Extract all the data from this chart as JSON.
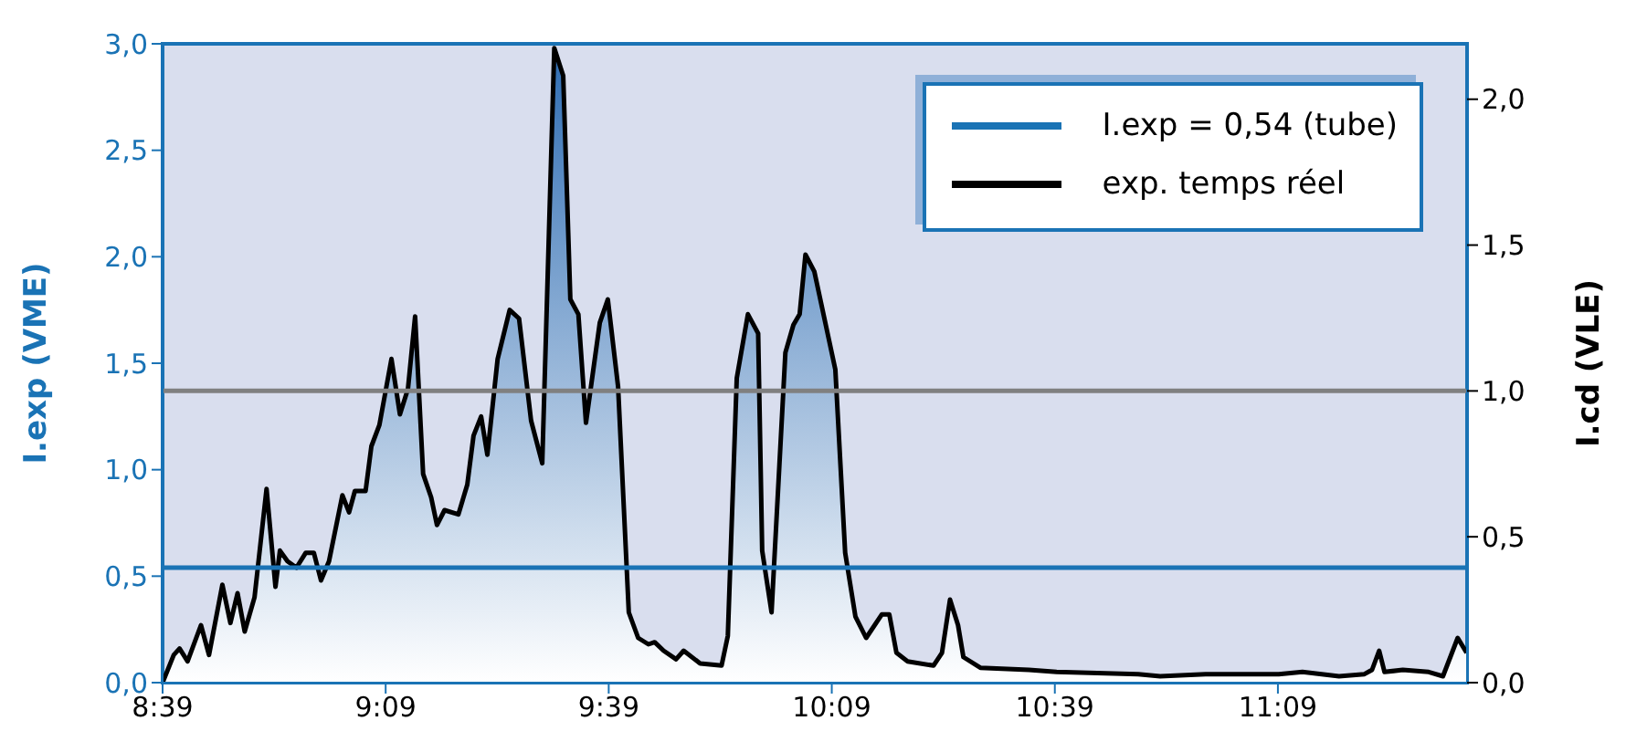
{
  "chart_data": {
    "type": "area",
    "ylabel": "I.exp (VME)",
    "y2label": "I.cd (VLE)",
    "x": [
      8.65,
      8.675,
      8.688,
      8.706,
      8.736,
      8.754,
      8.784,
      8.802,
      8.818,
      8.834,
      8.856,
      8.883,
      8.903,
      8.913,
      8.93,
      8.95,
      8.971,
      8.989,
      9.005,
      9.023,
      9.053,
      9.068,
      9.081,
      9.105,
      9.118,
      9.136,
      9.163,
      9.182,
      9.2,
      9.216,
      9.234,
      9.252,
      9.265,
      9.282,
      9.313,
      9.333,
      9.347,
      9.364,
      9.378,
      9.401,
      9.428,
      9.449,
      9.476,
      9.501,
      9.528,
      9.548,
      9.564,
      9.582,
      9.599,
      9.63,
      9.648,
      9.671,
      9.695,
      9.716,
      9.739,
      9.753,
      9.773,
      9.801,
      9.818,
      9.855,
      9.903,
      9.917,
      9.937,
      9.962,
      9.985,
      9.994,
      10.015,
      10.046,
      10.064,
      10.078,
      10.091,
      10.111,
      10.158,
      10.18,
      10.203,
      10.227,
      10.262,
      10.279,
      10.295,
      10.32,
      10.378,
      10.397,
      10.415,
      10.433,
      10.445,
      10.483,
      10.592,
      10.654,
      10.837,
      10.886,
      10.988,
      11.152,
      11.205,
      11.287,
      11.344,
      11.361,
      11.377,
      11.389,
      11.43,
      11.488,
      11.52,
      11.553,
      11.573
    ],
    "series": [
      {
        "name": "exp. temps réel",
        "color": "#000000",
        "values": [
          0.0,
          0.13,
          0.16,
          0.1,
          0.27,
          0.13,
          0.46,
          0.28,
          0.42,
          0.24,
          0.4,
          0.91,
          0.45,
          0.62,
          0.57,
          0.54,
          0.61,
          0.61,
          0.48,
          0.57,
          0.88,
          0.8,
          0.9,
          0.9,
          1.11,
          1.21,
          1.52,
          1.26,
          1.38,
          1.72,
          0.98,
          0.87,
          0.74,
          0.81,
          0.79,
          0.93,
          1.16,
          1.25,
          1.07,
          1.52,
          1.75,
          1.71,
          1.23,
          1.03,
          2.98,
          2.85,
          1.8,
          1.73,
          1.22,
          1.69,
          1.8,
          1.39,
          0.33,
          0.21,
          0.18,
          0.19,
          0.15,
          0.11,
          0.15,
          0.09,
          0.08,
          0.22,
          1.43,
          1.73,
          1.64,
          0.62,
          0.33,
          1.55,
          1.68,
          1.73,
          2.01,
          1.93,
          1.47,
          0.61,
          0.31,
          0.21,
          0.32,
          0.32,
          0.14,
          0.1,
          0.08,
          0.14,
          0.39,
          0.27,
          0.12,
          0.07,
          0.06,
          0.05,
          0.04,
          0.03,
          0.04,
          0.04,
          0.05,
          0.03,
          0.04,
          0.06,
          0.15,
          0.05,
          0.06,
          0.05,
          0.03,
          0.21,
          0.14
        ]
      }
    ],
    "xlim": [
      8.65,
      11.574
    ],
    "xticks": [
      {
        "value": 8.65,
        "label": "8:39"
      },
      {
        "value": 9.15,
        "label": "9:09"
      },
      {
        "value": 9.65,
        "label": "9:39"
      },
      {
        "value": 10.15,
        "label": "10:09"
      },
      {
        "value": 10.65,
        "label": "10:39"
      },
      {
        "value": 11.15,
        "label": "11:09"
      }
    ],
    "ylim": [
      0,
      3
    ],
    "yticks": [
      {
        "value": 0,
        "label": "0,0"
      },
      {
        "value": 0.5,
        "label": "0,5"
      },
      {
        "value": 1,
        "label": "1,0"
      },
      {
        "value": 1.5,
        "label": "1,5"
      },
      {
        "value": 2,
        "label": "2,0"
      },
      {
        "value": 2.5,
        "label": "2,5"
      },
      {
        "value": 3,
        "label": "3,0"
      }
    ],
    "y2lim": [
      0,
      2.19
    ],
    "y2ticks": [
      {
        "value": 0,
        "label": "0,0"
      },
      {
        "value": 0.5,
        "label": "0,5"
      },
      {
        "value": 1,
        "label": "1,0"
      },
      {
        "value": 1.5,
        "label": "1,5"
      },
      {
        "value": 2,
        "label": "2,0"
      }
    ],
    "ref_lines": [
      {
        "axis": "y",
        "value": 0.54,
        "label": "I.exp = 0,54 (tube)",
        "color": "#1a73b5"
      },
      {
        "axis": "y2",
        "value": 1,
        "color": "#808080"
      }
    ],
    "legend": "top right"
  }
}
